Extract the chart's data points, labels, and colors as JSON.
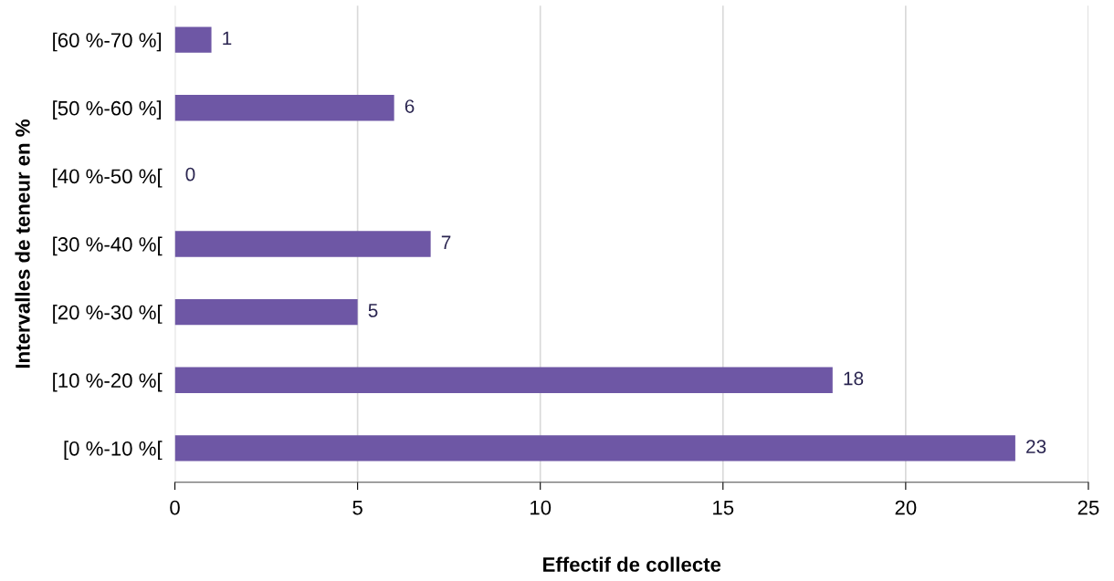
{
  "chart_data": {
    "type": "bar",
    "orientation": "horizontal",
    "categories": [
      "[60 %-70 %]",
      "[50 %-60 %]",
      "[40 %-50 %[",
      "[30 %-40 %[",
      "[20 %-30 %[",
      "[10 %-20 %[",
      "[0 %-10 %["
    ],
    "values": [
      1,
      6,
      0,
      7,
      5,
      18,
      23
    ],
    "color": "#6e57a5",
    "xlabel": "Effectif de collecte",
    "ylabel": "Intervalles de teneur en %",
    "xlim": [
      0,
      25
    ],
    "xticks": [
      0,
      5,
      10,
      15,
      20,
      25
    ],
    "grid": "x",
    "data_labels": true
  }
}
